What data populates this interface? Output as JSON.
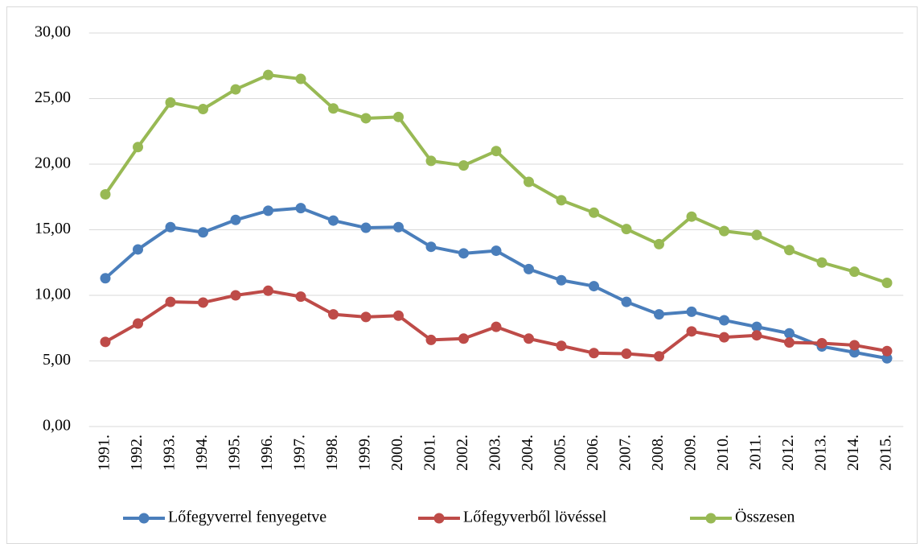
{
  "chart_data": {
    "type": "line",
    "categories": [
      "1991.",
      "1992.",
      "1993.",
      "1994.",
      "1995.",
      "1996.",
      "1997.",
      "1998.",
      "1999.",
      "2000.",
      "2001.",
      "2002.",
      "2003.",
      "2004.",
      "2005.",
      "2006.",
      "2007.",
      "2008.",
      "2009.",
      "2010.",
      "2011.",
      "2012.",
      "2013.",
      "2014.",
      "2015."
    ],
    "series": [
      {
        "name": "Lőfegyverrel fenyegetve",
        "color": "#4a7ebb",
        "values": [
          11.3,
          13.5,
          15.2,
          14.8,
          15.75,
          16.45,
          16.65,
          15.7,
          15.15,
          15.2,
          13.7,
          13.2,
          13.4,
          12.0,
          11.15,
          10.7,
          9.5,
          8.55,
          8.75,
          8.1,
          7.6,
          7.1,
          6.1,
          5.65,
          5.2
        ]
      },
      {
        "name": "Lőfegyverből lövéssel",
        "color": "#be4b48",
        "values": [
          6.45,
          7.85,
          9.5,
          9.45,
          10.0,
          10.35,
          9.9,
          8.55,
          8.35,
          8.45,
          6.6,
          6.7,
          7.6,
          6.7,
          6.15,
          5.6,
          5.55,
          5.35,
          7.25,
          6.8,
          6.95,
          6.4,
          6.35,
          6.2,
          5.75
        ]
      },
      {
        "name": "Összesen",
        "color": "#98b954",
        "values": [
          17.7,
          21.3,
          24.7,
          24.2,
          25.7,
          26.8,
          26.5,
          24.25,
          23.5,
          23.6,
          20.25,
          19.9,
          21.0,
          18.65,
          17.25,
          16.3,
          15.05,
          13.9,
          16.0,
          14.9,
          14.6,
          13.45,
          12.5,
          11.8,
          10.95
        ]
      }
    ],
    "ylim": [
      0,
      30
    ],
    "yticks": [
      {
        "value": 0,
        "label": "0,00"
      },
      {
        "value": 5,
        "label": "5,00"
      },
      {
        "value": 10,
        "label": "10,00"
      },
      {
        "value": 15,
        "label": "15,00"
      },
      {
        "value": 20,
        "label": "20,00"
      },
      {
        "value": 25,
        "label": "25,00"
      },
      {
        "value": 30,
        "label": "30,00"
      }
    ],
    "grid": true,
    "legend": "bottom"
  }
}
